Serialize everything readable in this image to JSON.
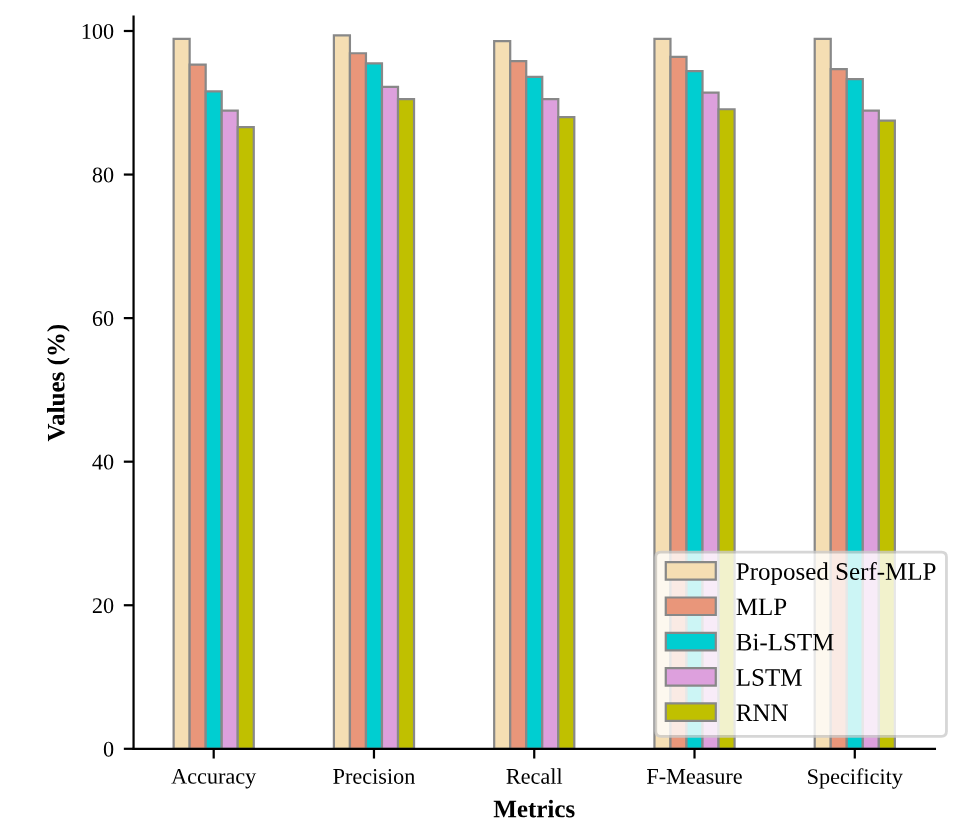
{
  "chart_data": {
    "type": "bar",
    "xlabel": "Metrics",
    "ylabel": "Values (%)",
    "categories": [
      "Accuracy",
      "Precision",
      "Recall",
      "F-Measure",
      "Specificity"
    ],
    "series": [
      {
        "name": "Proposed Serf-MLP",
        "color": "#f5deb3",
        "values": [
          98.9,
          99.4,
          98.6,
          98.9,
          98.9
        ]
      },
      {
        "name": "MLP",
        "color": "#e9967a",
        "values": [
          95.3,
          96.9,
          95.8,
          96.4,
          94.7
        ]
      },
      {
        "name": "Bi-LSTM",
        "color": "#00ced1",
        "values": [
          91.6,
          95.5,
          93.6,
          94.4,
          93.3
        ]
      },
      {
        "name": "LSTM",
        "color": "#dda0dd",
        "values": [
          88.9,
          92.2,
          90.5,
          91.4,
          88.9
        ]
      },
      {
        "name": "RNN",
        "color": "#c0c000",
        "values": [
          86.6,
          90.5,
          88.0,
          89.1,
          87.5
        ]
      }
    ],
    "ylim": [
      0,
      102
    ],
    "yticks": [
      0,
      20,
      40,
      60,
      80,
      100
    ],
    "grid": false,
    "legend": "bottom right"
  }
}
